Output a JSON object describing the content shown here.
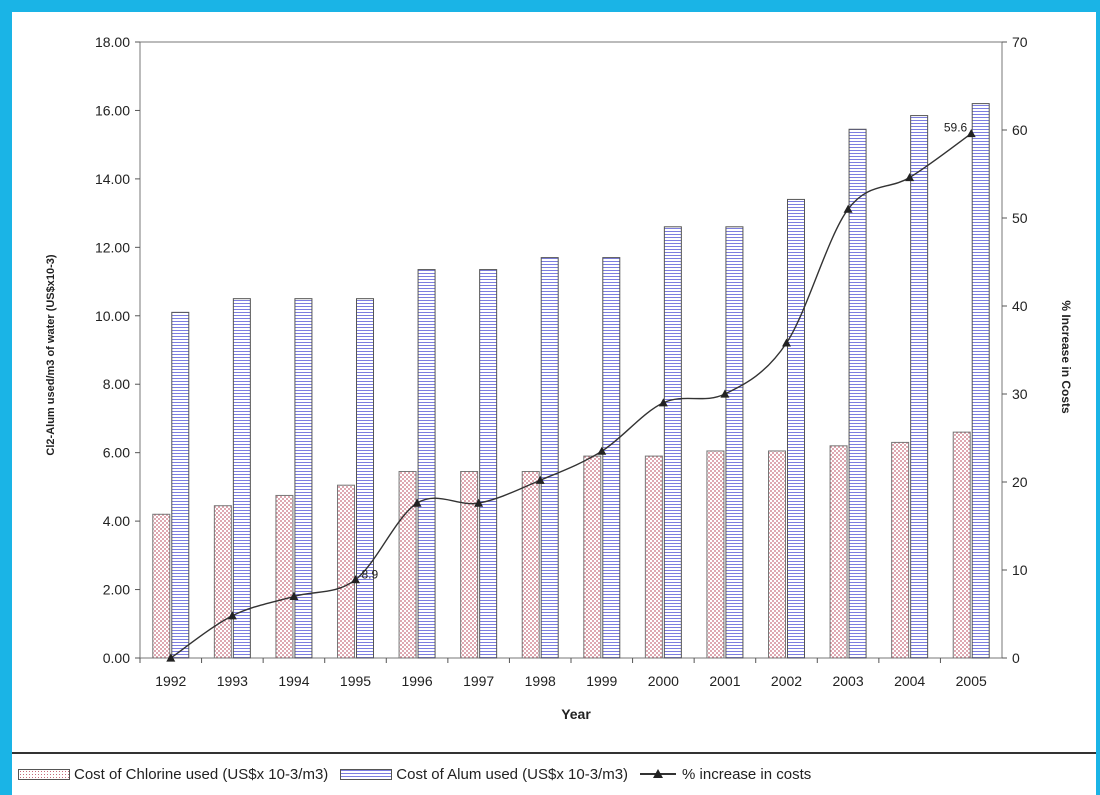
{
  "chart_data": {
    "type": "bar",
    "categories": [
      "1992",
      "1993",
      "1994",
      "1995",
      "1996",
      "1997",
      "1998",
      "1999",
      "2000",
      "2001",
      "2002",
      "2003",
      "2004",
      "2005"
    ],
    "series": [
      {
        "name": "Cost of Chlorine used (US$x 10-3/m3)",
        "kind": "bar",
        "axis": "left",
        "color": "#c76a7a",
        "pattern": "dots",
        "values": [
          4.2,
          4.45,
          4.75,
          5.05,
          5.45,
          5.45,
          5.45,
          5.9,
          5.9,
          6.05,
          6.05,
          6.2,
          6.3,
          6.6
        ]
      },
      {
        "name": "Cost of Alum used (US$x 10-3/m3)",
        "kind": "bar",
        "axis": "left",
        "color": "#7d7ee0",
        "pattern": "horizontal-lines",
        "values": [
          10.1,
          10.5,
          10.5,
          10.5,
          11.35,
          11.35,
          11.7,
          11.7,
          12.6,
          12.6,
          13.4,
          15.45,
          15.85,
          16.2
        ]
      },
      {
        "name": "% increase in costs",
        "kind": "line",
        "axis": "right",
        "color": "#333333",
        "marker": "triangle",
        "values": [
          0,
          4.8,
          7.0,
          8.9,
          17.6,
          17.6,
          20.2,
          23.5,
          29.0,
          30.0,
          35.8,
          51.0,
          54.6,
          59.6
        ]
      }
    ],
    "annotations": [
      {
        "category": "1995",
        "text": "8.9"
      },
      {
        "category": "2005",
        "text": "59.6"
      }
    ],
    "left_axis": {
      "label": "Cl2-Alum used/m3 of water (US$x10-3)",
      "min": 0,
      "max": 18,
      "ticks": [
        "0.00",
        "2.00",
        "4.00",
        "6.00",
        "8.00",
        "10.00",
        "12.00",
        "14.00",
        "16.00",
        "18.00"
      ]
    },
    "right_axis": {
      "label": "% Increase in Costs",
      "min": 0,
      "max": 70,
      "ticks": [
        "0",
        "10",
        "20",
        "30",
        "40",
        "50",
        "60",
        "70"
      ]
    },
    "xlabel": "Year",
    "legend_position": "bottom",
    "grid": false
  },
  "legend": {
    "chlorine": "Cost of Chlorine used (US$x 10-3/m3)",
    "alum": "Cost of Alum used (US$x 10-3/m3)",
    "line": "% increase in costs"
  },
  "colors": {
    "background_border": "#1ab4e6",
    "chlorine": "#c76a7a",
    "alum": "#7d7ee0",
    "line": "#333333"
  }
}
